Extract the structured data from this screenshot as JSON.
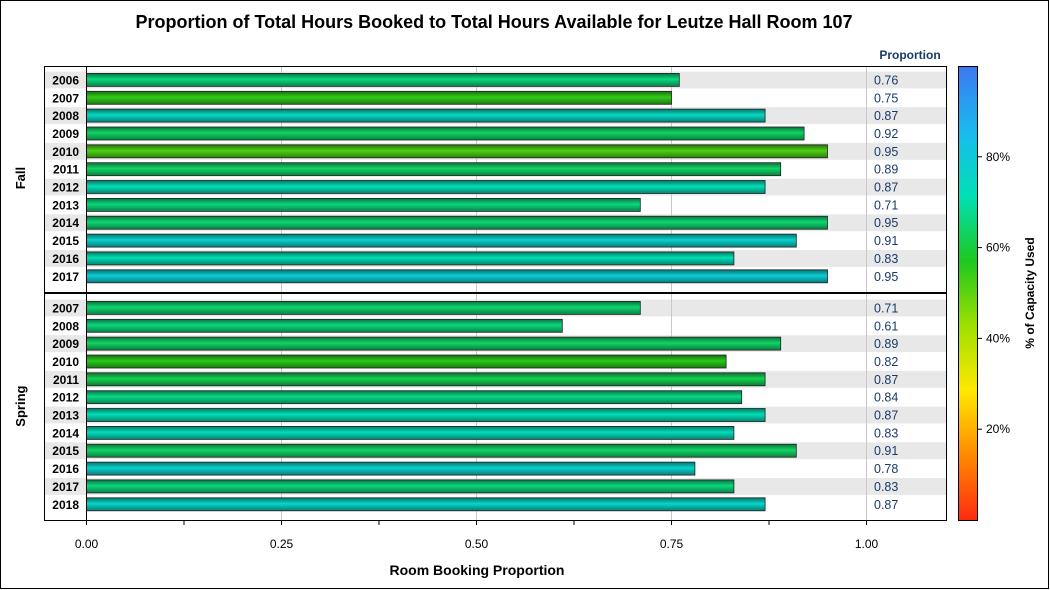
{
  "chart_data": {
    "type": "bar",
    "orientation": "horizontal",
    "title": "Proportion of Total Hours Booked to Total Hours Available for Leutze Hall Room 107",
    "xlabel": "Room Booking Proportion",
    "xlim": [
      0,
      1.1
    ],
    "xticks": [
      "0.00",
      "0.25",
      "0.50",
      "0.75",
      "1.00"
    ],
    "value_column_header": "Proportion",
    "groups": [
      {
        "name": "Fall",
        "categories": [
          "2006",
          "2007",
          "2008",
          "2009",
          "2010",
          "2011",
          "2012",
          "2013",
          "2014",
          "2015",
          "2016",
          "2017"
        ],
        "values": [
          0.76,
          0.75,
          0.87,
          0.92,
          0.95,
          0.89,
          0.87,
          0.71,
          0.95,
          0.91,
          0.83,
          0.95
        ],
        "value_labels": [
          "0.76",
          "0.75",
          "0.87",
          "0.92",
          "0.95",
          "0.89",
          "0.87",
          "0.71",
          "0.95",
          "0.91",
          "0.83",
          "0.95"
        ],
        "capacity_used_pct": [
          66,
          55,
          75,
          64,
          52,
          64,
          72,
          66,
          65,
          77,
          72,
          79
        ]
      },
      {
        "name": "Spring",
        "categories": [
          "2007",
          "2008",
          "2009",
          "2010",
          "2011",
          "2012",
          "2013",
          "2014",
          "2015",
          "2016",
          "2017",
          "2018"
        ],
        "values": [
          0.71,
          0.61,
          0.89,
          0.82,
          0.87,
          0.84,
          0.87,
          0.83,
          0.91,
          0.78,
          0.83,
          0.87
        ],
        "value_labels": [
          "0.71",
          "0.61",
          "0.89",
          "0.82",
          "0.87",
          "0.84",
          "0.87",
          "0.83",
          "0.91",
          "0.78",
          "0.83",
          "0.87"
        ],
        "capacity_used_pct": [
          65,
          66,
          64,
          56,
          62,
          67,
          72,
          73,
          64,
          77,
          66,
          76
        ]
      }
    ],
    "colorbar": {
      "label": "% of Capacity Used",
      "range": [
        0,
        100
      ],
      "ticks": [
        "20%",
        "40%",
        "60%",
        "80%"
      ],
      "tick_values": [
        20,
        40,
        60,
        80
      ],
      "colors": [
        "#ff2a10",
        "#ff8a00",
        "#ffe800",
        "#9ee000",
        "#1ec81e",
        "#00e0b4",
        "#1abaf0",
        "#3c78f0"
      ]
    },
    "row_band_color": "#e8e8e8",
    "grid": true
  }
}
